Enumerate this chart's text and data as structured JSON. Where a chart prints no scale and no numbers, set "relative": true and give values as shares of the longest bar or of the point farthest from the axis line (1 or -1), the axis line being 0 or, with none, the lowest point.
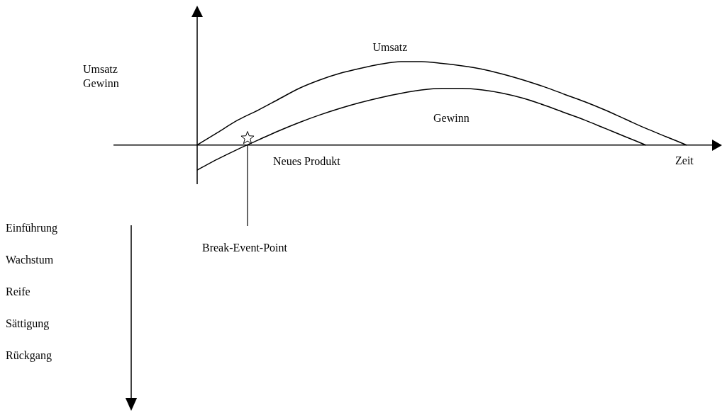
{
  "chart_data": {
    "type": "line",
    "relative": true,
    "xlabel": "Zeit",
    "legend": false,
    "marker": "none",
    "line_style": "solid",
    "categories": [
      null,
      null,
      null,
      null,
      null,
      null,
      null,
      null,
      null,
      null,
      null,
      null,
      null,
      null,
      null,
      null,
      null,
      null,
      null,
      null,
      null,
      null,
      null,
      null,
      null
    ],
    "series": [
      {
        "name": "Umsatz",
        "color": "#000000",
        "values": [
          0,
          0.15,
          0.3,
          0.42,
          0.55,
          0.68,
          0.78,
          0.86,
          0.92,
          0.97,
          1,
          1,
          0.98,
          0.95,
          0.91,
          0.85,
          0.78,
          0.7,
          0.61,
          0.52,
          0.42,
          0.31,
          0.2,
          0.1,
          0
        ]
      },
      {
        "name": "Gewinn",
        "color": "#000000",
        "values": [
          -0.3,
          -0.17,
          -0.05,
          0.06,
          0.17,
          0.27,
          0.36,
          0.44,
          0.51,
          0.57,
          0.62,
          0.66,
          0.68,
          0.68,
          0.66,
          0.62,
          0.56,
          0.48,
          0.39,
          0.3,
          0.2,
          0.1,
          0,
          null,
          null
        ]
      }
    ],
    "annotations": [
      "Umsatz\nGewinn",
      "Neues Produkt",
      "Break-Event-Point",
      "Einführung",
      "Wachstum",
      "Reife",
      "Sättigung",
      "Rückgang"
    ]
  }
}
